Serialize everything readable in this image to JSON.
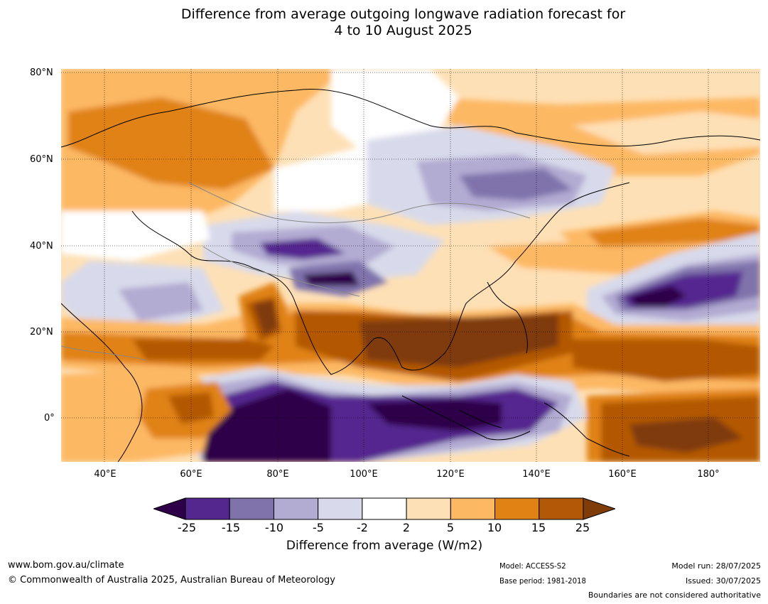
{
  "title": {
    "line1": "Difference from average outgoing longwave radiation forecast for",
    "line2": "4 to 10 August 2025"
  },
  "map": {
    "lat_labels": [
      "80°N",
      "60°N",
      "40°N",
      "20°N",
      "0°"
    ],
    "lon_labels": [
      "40°E",
      "60°E",
      "80°E",
      "100°E",
      "120°E",
      "140°E",
      "160°E",
      "180°"
    ]
  },
  "colorbar": {
    "ticks": [
      "-25",
      "-15",
      "-10",
      "-5",
      "-2",
      "2",
      "5",
      "10",
      "15",
      "25"
    ],
    "colors": [
      "#2d0049",
      "#54278f",
      "#8073ac",
      "#b2abd2",
      "#d8daeb",
      "#ffffff",
      "#fee0b6",
      "#fdb863",
      "#e08214",
      "#b35806",
      "#7f3b08"
    ],
    "label": "Difference from average (W/m2)"
  },
  "footer": {
    "website": "www.bom.gov.au/climate",
    "copyright": "© Commonwealth of Australia 2025, Australian Bureau of Meteorology",
    "model": "Model: ACCESS-S2",
    "base_period": "Base period: 1981-2018",
    "model_run": "Model run: 28/07/2025",
    "issued": "Issued: 30/07/2025",
    "disclaimer": "Boundaries are not considered authoritative"
  }
}
